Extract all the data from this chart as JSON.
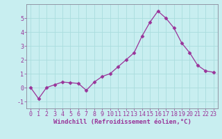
{
  "x": [
    0,
    1,
    2,
    3,
    4,
    5,
    6,
    7,
    8,
    9,
    10,
    11,
    12,
    13,
    14,
    15,
    16,
    17,
    18,
    19,
    20,
    21,
    22,
    23
  ],
  "y": [
    0.0,
    -0.8,
    0.0,
    0.2,
    0.4,
    0.35,
    0.3,
    -0.2,
    0.4,
    0.8,
    1.0,
    1.5,
    2.0,
    2.5,
    3.7,
    4.7,
    5.5,
    5.0,
    4.3,
    3.2,
    2.5,
    1.6,
    1.2,
    1.1
  ],
  "line_color": "#993399",
  "marker": "D",
  "marker_size": 2.5,
  "bg_color": "#c8eef0",
  "grid_color": "#aadddd",
  "xlabel": "Windchill (Refroidissement éolien,°C)",
  "xlim": [
    -0.5,
    23.5
  ],
  "ylim": [
    -1.5,
    6.0
  ],
  "yticks": [
    -1,
    0,
    1,
    2,
    3,
    4,
    5
  ],
  "xticks": [
    0,
    1,
    2,
    3,
    4,
    5,
    6,
    7,
    8,
    9,
    10,
    11,
    12,
    13,
    14,
    15,
    16,
    17,
    18,
    19,
    20,
    21,
    22,
    23
  ],
  "label_fontsize": 6.5,
  "tick_fontsize": 6.0
}
